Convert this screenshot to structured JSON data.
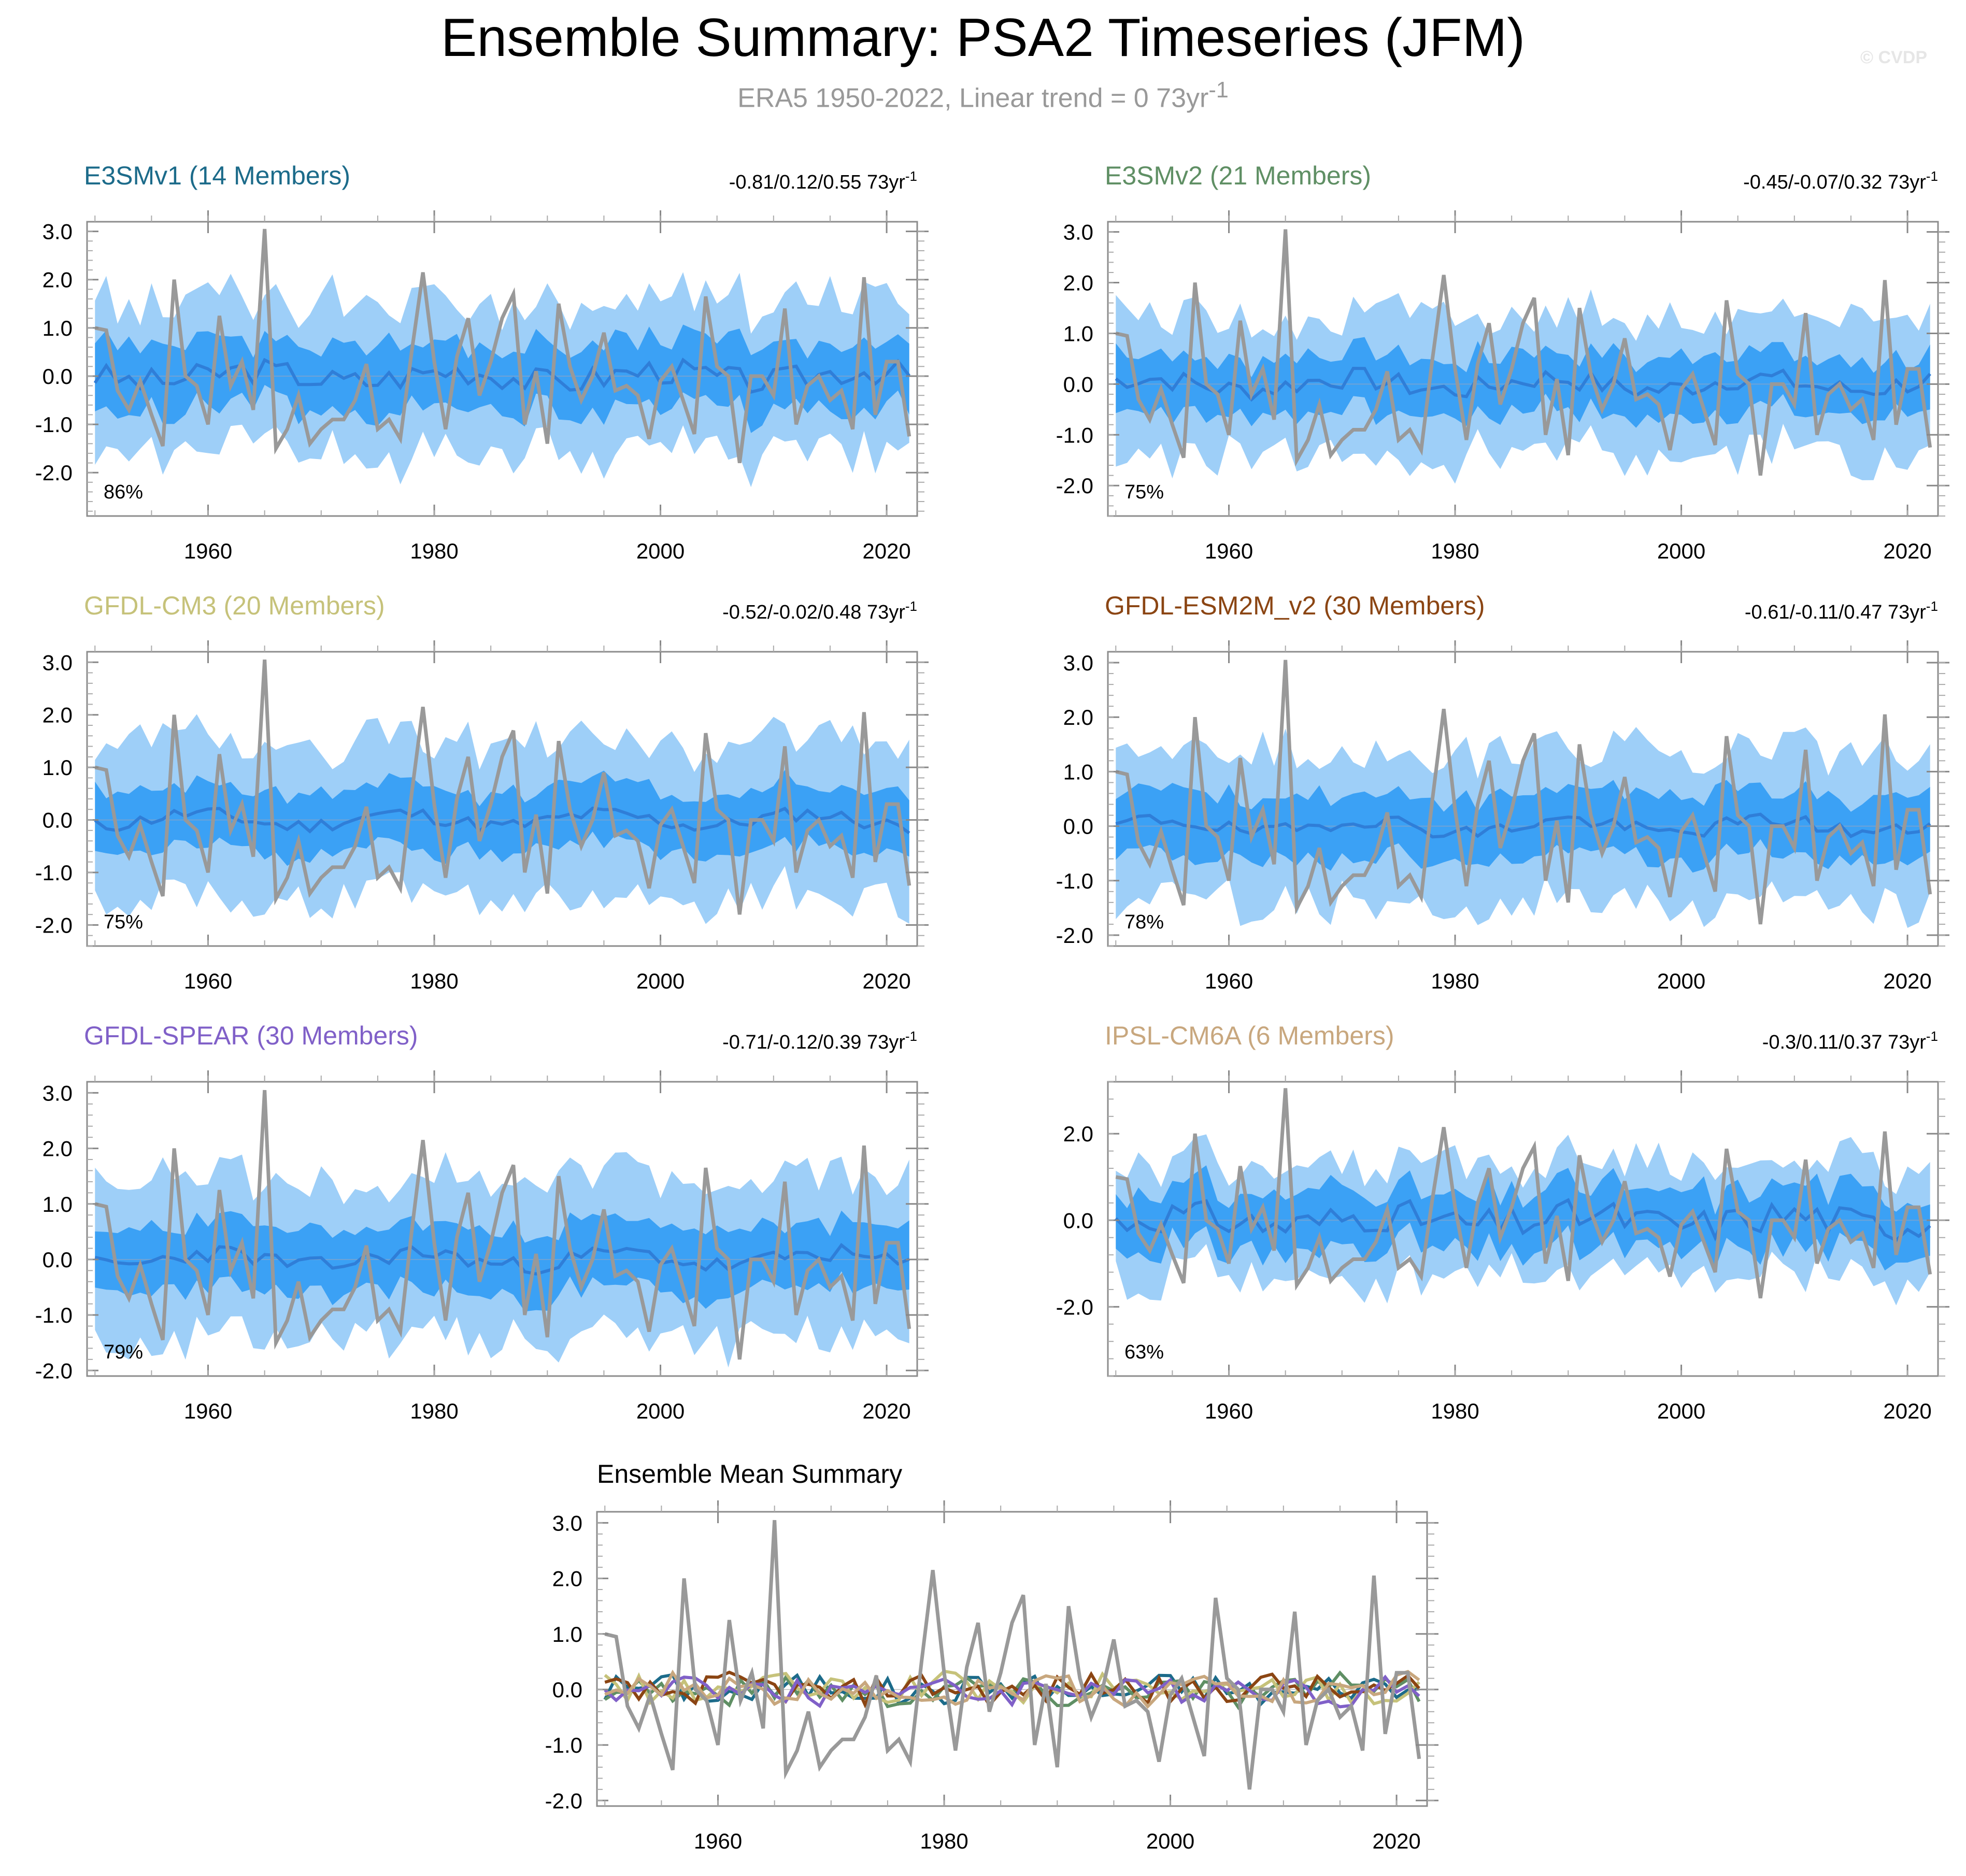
{
  "title": "Ensemble Summary: PSA2 Timeseries (JFM)",
  "subtitle_main": "ERA5 1950-2022, Linear trend = 0 73yr",
  "subtitle_sup": "-1",
  "credit": "© CVDP",
  "colors": {
    "outer_band": "#9ecff8",
    "inner_band": "#3ba1f5",
    "ens_mean": "#2f7ed8",
    "obs": "#999999",
    "frame": "#8c8c8c"
  },
  "chart_data": [
    {
      "type": "area",
      "id": "e3smv1",
      "title": "E3SMv1 (14 Members)",
      "title_color": "#1c6b8a",
      "trend": "-0.81/0.12/0.55 73yr",
      "trend_sup": "-1",
      "percent": "86%",
      "ylim": [
        -2.9,
        3.2
      ],
      "yticks": [
        3.0,
        2.0,
        1.0,
        0.0,
        -1.0,
        -2.0
      ],
      "xlim": [
        1949.3,
        2022.7
      ],
      "xticks": [
        1960,
        1980,
        2000,
        2020
      ],
      "band_outer": 1.55,
      "band_inner": 0.72,
      "mean_scale": 0.28,
      "seed": 3
    },
    {
      "type": "area",
      "id": "e3smv2",
      "title": "E3SMv2 (21 Members)",
      "title_color": "#5f8f64",
      "trend": "-0.45/-0.07/0.32 73yr",
      "trend_sup": "-1",
      "percent": "75%",
      "ylim": [
        -2.6,
        3.2
      ],
      "yticks": [
        3.0,
        2.0,
        1.0,
        0.0,
        -1.0,
        -2.0
      ],
      "xlim": [
        1949.3,
        2022.7
      ],
      "xticks": [
        1960,
        1980,
        2000,
        2020
      ],
      "band_outer": 1.35,
      "band_inner": 0.6,
      "mean_scale": 0.22,
      "seed": 7
    },
    {
      "type": "area",
      "id": "gfdl-cm3",
      "title": "GFDL-CM3 (20 Members)",
      "title_color": "#c6c27a",
      "trend": "-0.52/-0.02/0.48 73yr",
      "trend_sup": "-1",
      "percent": "75%",
      "ylim": [
        -2.4,
        3.2
      ],
      "yticks": [
        3.0,
        2.0,
        1.0,
        0.0,
        -1.0,
        -2.0
      ],
      "xlim": [
        1949.3,
        2022.7
      ],
      "xticks": [
        1960,
        1980,
        2000,
        2020
      ],
      "band_outer": 1.45,
      "band_inner": 0.62,
      "mean_scale": 0.14,
      "seed": 11
    },
    {
      "type": "area",
      "id": "gfdl-esm2m",
      "title": "GFDL-ESM2M_v2 (30 Members)",
      "title_color": "#8b4513",
      "trend": "-0.61/-0.11/0.47 73yr",
      "trend_sup": "-1",
      "percent": "78%",
      "ylim": [
        -2.2,
        3.2
      ],
      "yticks": [
        3.0,
        2.0,
        1.0,
        0.0,
        -1.0,
        -2.0
      ],
      "xlim": [
        1949.3,
        2022.7
      ],
      "xticks": [
        1960,
        1980,
        2000,
        2020
      ],
      "band_outer": 1.35,
      "band_inner": 0.62,
      "mean_scale": 0.14,
      "seed": 19
    },
    {
      "type": "area",
      "id": "gfdl-spear",
      "title": "GFDL-SPEAR (30 Members)",
      "title_color": "#8060c8",
      "trend": "-0.71/-0.12/0.39 73yr",
      "trend_sup": "-1",
      "percent": "79%",
      "ylim": [
        -2.1,
        3.2
      ],
      "yticks": [
        3.0,
        2.0,
        1.0,
        0.0,
        -1.0,
        -2.0
      ],
      "xlim": [
        1949.3,
        2022.7
      ],
      "xticks": [
        1960,
        1980,
        2000,
        2020
      ],
      "band_outer": 1.4,
      "band_inner": 0.62,
      "mean_scale": 0.16,
      "seed": 23
    },
    {
      "type": "area",
      "id": "ipsl-cm6a",
      "title": "IPSL-CM6A (6 Members)",
      "title_color": "#c8a77e",
      "trend": "-0.3/0.11/0.37 73yr",
      "trend_sup": "-1",
      "percent": "63%",
      "ylim": [
        -3.6,
        3.2
      ],
      "yticks": [
        2.0,
        0.0,
        -2.0
      ],
      "xlim": [
        1949.3,
        2022.7
      ],
      "xticks": [
        1960,
        1980,
        2000,
        2020
      ],
      "band_outer": 1.3,
      "band_inner": 0.7,
      "mean_scale": 0.38,
      "seed": 31
    },
    {
      "type": "line",
      "id": "summary",
      "title": "Ensemble Mean Summary",
      "ylim": [
        -2.1,
        3.2
      ],
      "yticks": [
        3.0,
        2.0,
        1.0,
        0.0,
        -1.0,
        -2.0
      ],
      "xlim": [
        1949.3,
        2022.7
      ],
      "xticks": [
        1960,
        1980,
        2000,
        2020
      ],
      "series_colors": [
        "#1c6b8a",
        "#5f8f64",
        "#c6c27a",
        "#8b4513",
        "#8060c8",
        "#c8a77e"
      ]
    }
  ],
  "obs_series": {
    "name": "ERA5",
    "x": [
      1950,
      1951,
      1952,
      1953,
      1954,
      1955,
      1956,
      1957,
      1958,
      1959,
      1960,
      1961,
      1962,
      1963,
      1964,
      1965,
      1966,
      1967,
      1968,
      1969,
      1970,
      1971,
      1972,
      1973,
      1974,
      1975,
      1976,
      1977,
      1978,
      1979,
      1980,
      1981,
      1982,
      1983,
      1984,
      1985,
      1986,
      1987,
      1988,
      1989,
      1990,
      1991,
      1992,
      1993,
      1994,
      1995,
      1996,
      1997,
      1998,
      1999,
      2000,
      2001,
      2002,
      2003,
      2004,
      2005,
      2006,
      2007,
      2008,
      2009,
      2010,
      2011,
      2012,
      2013,
      2014,
      2015,
      2016,
      2017,
      2018,
      2019,
      2020,
      2021,
      2022
    ],
    "values": [
      1.0,
      0.95,
      -0.3,
      -0.7,
      -0.1,
      -0.8,
      -1.45,
      2.0,
      0.0,
      -0.2,
      -1.0,
      1.25,
      -0.2,
      0.3,
      -0.7,
      3.05,
      -1.5,
      -1.1,
      -0.4,
      -1.4,
      -1.1,
      -0.9,
      -0.9,
      -0.5,
      0.25,
      -1.1,
      -0.9,
      -1.3,
      0.5,
      2.15,
      0.3,
      -1.1,
      0.4,
      1.2,
      -0.4,
      0.3,
      1.2,
      1.7,
      -1.0,
      0.1,
      -1.4,
      1.5,
      0.2,
      -0.5,
      0.0,
      0.9,
      -0.3,
      -0.2,
      -0.4,
      -1.3,
      -0.1,
      0.2,
      -0.5,
      -1.2,
      1.65,
      0.2,
      0.0,
      -1.8,
      0.0,
      0.0,
      -0.4,
      1.4,
      -1.0,
      -0.2,
      0.0,
      -0.5,
      -0.3,
      -1.1,
      2.05,
      -0.8,
      0.3,
      0.3,
      -1.25
    ]
  }
}
